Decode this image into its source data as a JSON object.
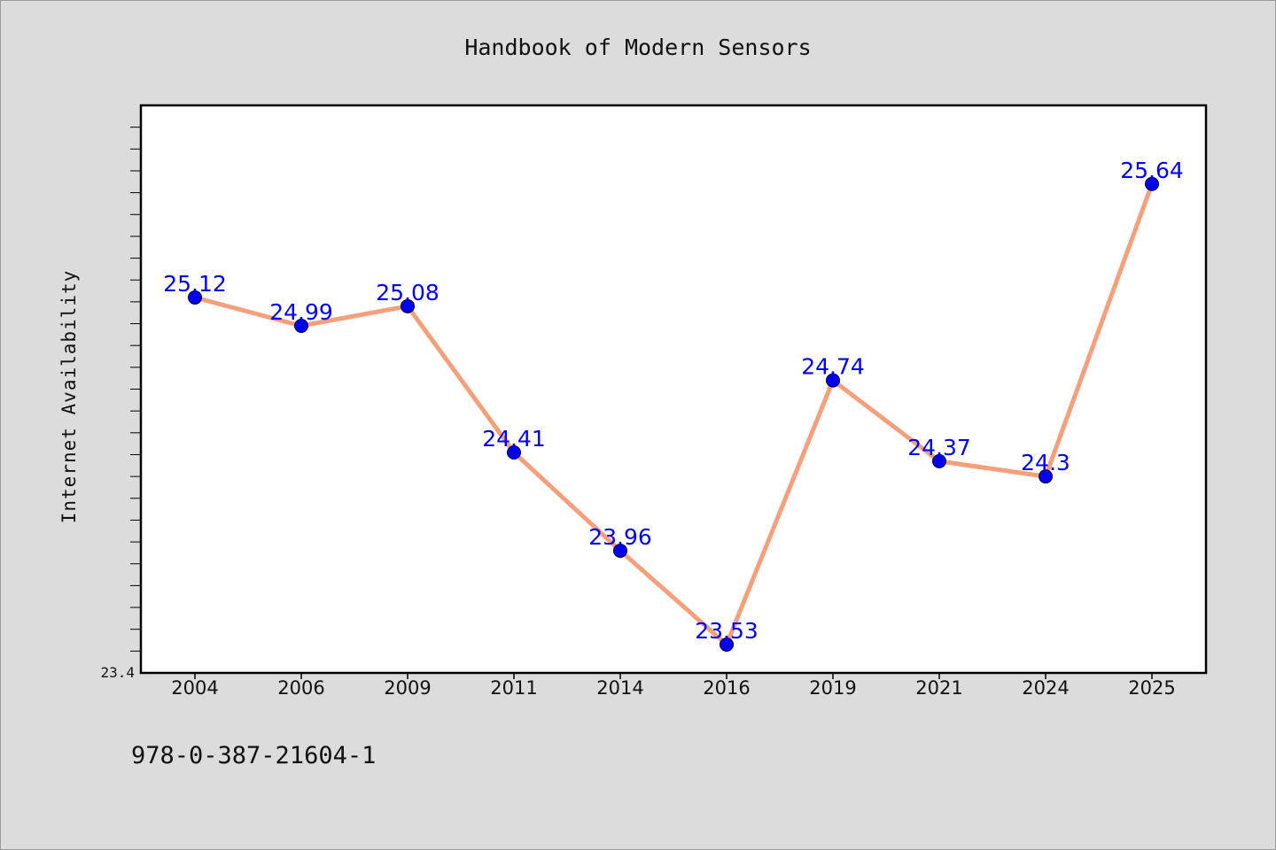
{
  "chart_data": {
    "type": "line",
    "title": "Handbook of Modern Sensors",
    "xlabel": "",
    "ylabel": "Internet Availability",
    "categories": [
      "2004",
      "2006",
      "2009",
      "2011",
      "2014",
      "2016",
      "2019",
      "2021",
      "2024",
      "2025"
    ],
    "values": [
      25.12,
      24.99,
      25.08,
      24.41,
      23.96,
      23.53,
      24.74,
      24.37,
      24.3,
      25.64
    ],
    "data_labels": [
      "25.12",
      "24.99",
      "25.08",
      "24.41",
      "23.96",
      "23.53",
      "24.74",
      "24.37",
      "24.3",
      "25.64"
    ],
    "ylim": [
      23.4,
      26.0
    ],
    "y_tick_labels": [
      {
        "value": 23.4,
        "label": "23.4"
      }
    ],
    "grid": false,
    "legend": "none",
    "colors": {
      "line": "#f5a07a",
      "marker": "#0000ee",
      "data_label": "#0000ff",
      "background": "#dcdcdc",
      "plot_area": "#ffffff"
    }
  },
  "footer": {
    "isbn": "978-0-387-21604-1"
  }
}
